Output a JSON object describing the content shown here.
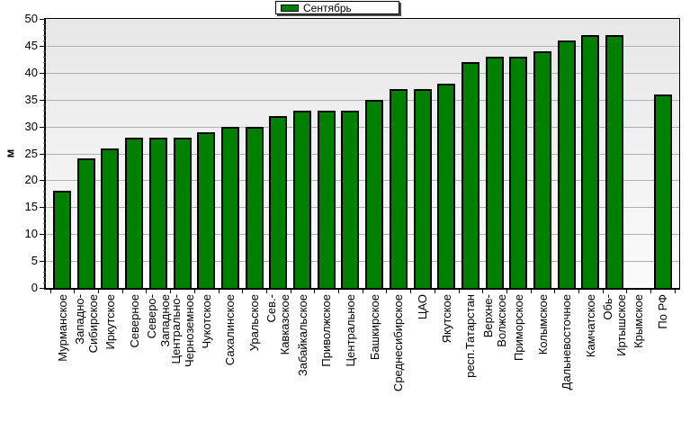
{
  "legend": {
    "label": "Сентябрь"
  },
  "y_axis": {
    "title": "м",
    "min": 0,
    "max": 50,
    "tick_step": 5
  },
  "colors": {
    "bar": "#008000",
    "bar_border": "#000000",
    "grid": "#b0b0b0",
    "axis": "#000000",
    "plot_bg_top": "#e7e7e7",
    "plot_bg_bottom": "#fbfbfb"
  },
  "chart_data": {
    "type": "bar",
    "title": "",
    "ylabel": "м",
    "xlabel": "",
    "ylim": [
      0,
      50
    ],
    "grid": true,
    "legend_entries": [
      "Сентябрь"
    ],
    "legend_position": "top-center",
    "series_color": "#008000",
    "categories": [
      "Мурманское",
      "Западно-\nСибирское",
      "Иркутское",
      "Северное",
      "Северо-\nЗападное",
      "Центрально-\nЧерноземное",
      "Чукотское",
      "Сахалинское",
      "Уральское",
      "Сев.-\nКавказское",
      "Забайкальское",
      "Приволжское",
      "Центральное",
      "Башкирское",
      "Среднесибирское",
      "ЦАО",
      "Якутское",
      "респ.Татарстан",
      "Верхне-\nВолжское",
      "Приморское",
      "Колымское",
      "Дальневосточное",
      "Камчатское",
      "Обь-\nИртышское",
      "Крымское",
      "По РФ"
    ],
    "values": [
      18,
      24,
      26,
      28,
      28,
      28,
      29,
      30,
      30,
      32,
      33,
      33,
      33,
      35,
      37,
      37,
      38,
      42,
      43,
      43,
      44,
      46,
      47,
      47,
      0,
      36
    ]
  }
}
